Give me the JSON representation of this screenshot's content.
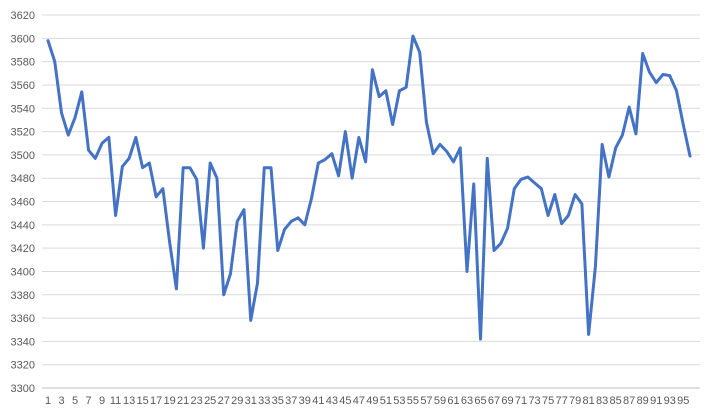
{
  "chart_data": {
    "type": "line",
    "title": "",
    "xlabel": "",
    "ylabel": "",
    "x": [
      1,
      2,
      3,
      4,
      5,
      6,
      7,
      8,
      9,
      10,
      11,
      12,
      13,
      14,
      15,
      16,
      17,
      18,
      19,
      20,
      21,
      22,
      23,
      24,
      25,
      26,
      27,
      28,
      29,
      30,
      31,
      32,
      33,
      34,
      35,
      36,
      37,
      38,
      39,
      40,
      41,
      42,
      43,
      44,
      45,
      46,
      47,
      48,
      49,
      50,
      51,
      52,
      53,
      54,
      55,
      56,
      57,
      58,
      59,
      60,
      61,
      62,
      63,
      64,
      65,
      66,
      67,
      68,
      69,
      70,
      71,
      72,
      73,
      74,
      75,
      76,
      77,
      78,
      79,
      80,
      81,
      82,
      83,
      84,
      85,
      86,
      87,
      88,
      89,
      90,
      91,
      92,
      93,
      94,
      95,
      96
    ],
    "x_tick_labels": [
      "1",
      "3",
      "5",
      "7",
      "9",
      "11",
      "13",
      "15",
      "17",
      "19",
      "21",
      "23",
      "25",
      "27",
      "29",
      "31",
      "33",
      "35",
      "37",
      "39",
      "41",
      "43",
      "45",
      "47",
      "49",
      "51",
      "53",
      "55",
      "57",
      "59",
      "61",
      "63",
      "65",
      "67",
      "69",
      "71",
      "73",
      "75",
      "77",
      "79",
      "81",
      "83",
      "85",
      "87",
      "89",
      "91",
      "93",
      "95"
    ],
    "ylim": [
      3300,
      3620
    ],
    "y_ticks": [
      3300,
      3320,
      3340,
      3360,
      3380,
      3400,
      3420,
      3440,
      3460,
      3480,
      3500,
      3520,
      3540,
      3560,
      3580,
      3600,
      3620
    ],
    "grid": true,
    "series": [
      {
        "color": "#4472c4",
        "values": [
          3598,
          3580,
          3536,
          3517,
          3532,
          3554,
          3504,
          3497,
          3510,
          3515,
          3448,
          3490,
          3497,
          3515,
          3489,
          3493,
          3464,
          3471,
          3425,
          3385,
          3489,
          3489,
          3479,
          3420,
          3493,
          3480,
          3380,
          3398,
          3443,
          3453,
          3358,
          3390,
          3489,
          3489,
          3418,
          3436,
          3443,
          3446,
          3440,
          3463,
          3493,
          3496,
          3501,
          3482,
          3520,
          3480,
          3515,
          3494,
          3573,
          3550,
          3555,
          3526,
          3555,
          3558,
          3602,
          3588,
          3528,
          3501,
          3509,
          3503,
          3494,
          3506,
          3400,
          3475,
          3342,
          3497,
          3418,
          3424,
          3437,
          3471,
          3479,
          3481,
          3476,
          3471,
          3448,
          3466,
          3441,
          3448,
          3466,
          3458,
          3346,
          3404,
          3509,
          3481,
          3506,
          3517,
          3541,
          3518,
          3587,
          3571,
          3562,
          3569,
          3568,
          3555,
          3526,
          3499
        ]
      }
    ]
  }
}
